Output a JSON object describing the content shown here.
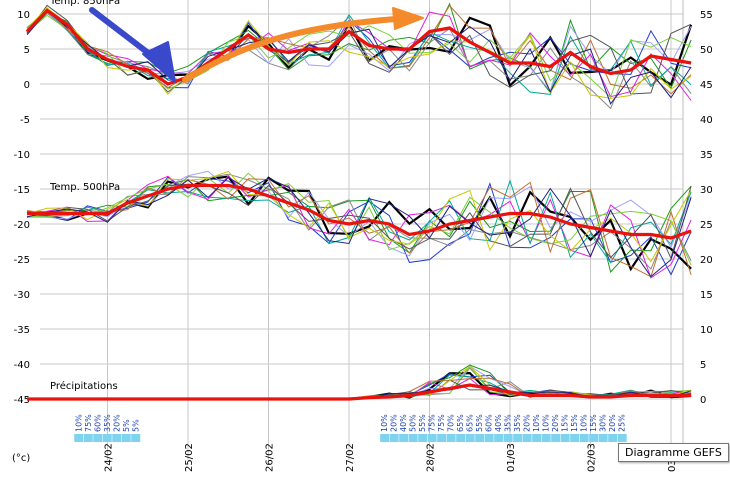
{
  "tooltip": "Diagramme GEFS",
  "chart_data": {
    "type": "line",
    "unit_label": "(°c)",
    "x_dates": [
      "24/02",
      "25/02",
      "26/02",
      "27/02",
      "28/02",
      "01/03",
      "02/03",
      "03/0"
    ],
    "left_axis": {
      "ticks": [
        10,
        5,
        0,
        -5,
        -10,
        -15,
        -20,
        -25,
        -30,
        -35,
        -40,
        -45
      ],
      "ylim": [
        -45,
        10
      ]
    },
    "right_axis": {
      "ticks": [
        55,
        50,
        45,
        40,
        35,
        30,
        25,
        20,
        15,
        10,
        5,
        0
      ]
    },
    "grid": true,
    "panels": [
      {
        "title": "Temp. 850hPa",
        "x_days": [
          0,
          0.25,
          0.5,
          0.75,
          1,
          1.25,
          1.5,
          1.75,
          2,
          2.25,
          2.5,
          2.75,
          3,
          3.25,
          3.5,
          3.75,
          4,
          4.25,
          4.5,
          4.75,
          5,
          5.25,
          5.5,
          5.75,
          6,
          6.25,
          6.5,
          6.75,
          7,
          7.25,
          7.5,
          7.75,
          8,
          8.25
        ],
        "mean_values": [
          7.5,
          10.5,
          8.5,
          5,
          3.5,
          2.5,
          2,
          0,
          1,
          3,
          5,
          7,
          5,
          4.5,
          5,
          5,
          7.5,
          5.5,
          5,
          5,
          7.5,
          8,
          6,
          4.5,
          3,
          3,
          2.5,
          4.5,
          2.5,
          1.5,
          2,
          4,
          3.5,
          3
        ],
        "members_spread": 2.5
      },
      {
        "title": "Temp. 500hPa",
        "x_days": [
          0,
          0.25,
          0.5,
          0.75,
          1,
          1.25,
          1.5,
          1.75,
          2,
          2.25,
          2.5,
          2.75,
          3,
          3.25,
          3.5,
          3.75,
          4,
          4.25,
          4.5,
          4.75,
          5,
          5.25,
          5.5,
          5.75,
          6,
          6.25,
          6.5,
          6.75,
          7,
          7.25,
          7.5,
          7.75,
          8,
          8.25
        ],
        "mean_values": [
          -18.5,
          -18.5,
          -18.5,
          -18.5,
          -18.5,
          -17,
          -16,
          -15,
          -14.5,
          -14.5,
          -14.5,
          -15,
          -16,
          -17,
          -18,
          -19.5,
          -20,
          -19.5,
          -20,
          -21.5,
          -21,
          -20,
          -19.5,
          -19,
          -18.5,
          -18.5,
          -19,
          -20,
          -20.5,
          -21,
          -21.5,
          -21.5,
          -22,
          -21
        ],
        "members_spread": 3
      },
      {
        "title": "Précipitations",
        "x_days": [
          0,
          0.5,
          1,
          1.5,
          2,
          2.5,
          3,
          3.5,
          4,
          4.25,
          4.5,
          4.75,
          5,
          5.25,
          5.5,
          5.75,
          6,
          6.25,
          6.5,
          6.75,
          7,
          7.25,
          7.5,
          7.75,
          8,
          8.25
        ],
        "mean_values": [
          0,
          0,
          0,
          0,
          0,
          0,
          0,
          0,
          0,
          0.2,
          0.3,
          0.5,
          1,
          1.5,
          2,
          1.5,
          1,
          0.5,
          0.5,
          0.5,
          0.3,
          0.3,
          0.5,
          0.5,
          0.5,
          0.5
        ]
      }
    ],
    "precip_probabilities": [
      {
        "x_start_day": 0.5,
        "labels": [
          "10%",
          "75%",
          "60%",
          "35%",
          "20%",
          "5%",
          "5%"
        ]
      },
      {
        "x_start_day": 4.3,
        "labels": [
          "10%",
          "20%",
          "40%",
          "50%",
          "55%",
          "75%",
          "75%",
          "70%",
          "65%",
          "65%",
          "55%",
          "60%",
          "40%",
          "35%",
          "35%",
          "20%",
          "10%",
          "10%",
          "20%",
          "15%",
          "15%",
          "10%",
          "15%",
          "30%",
          "20%",
          "25%"
        ]
      }
    ],
    "annotations": [
      {
        "type": "arrow",
        "color": "#3a49cc"
      },
      {
        "type": "arrow",
        "color": "#f58a2a"
      }
    ],
    "series_colors": [
      "#000000",
      "#1f3cd1",
      "#1a9a1a",
      "#888888",
      "#a0a0ff",
      "#e020e0",
      "#00aa99",
      "#7bd13a",
      "#c07030",
      "#555555",
      "#c8c800",
      "#202080"
    ],
    "mean_color": "#e8120f"
  }
}
